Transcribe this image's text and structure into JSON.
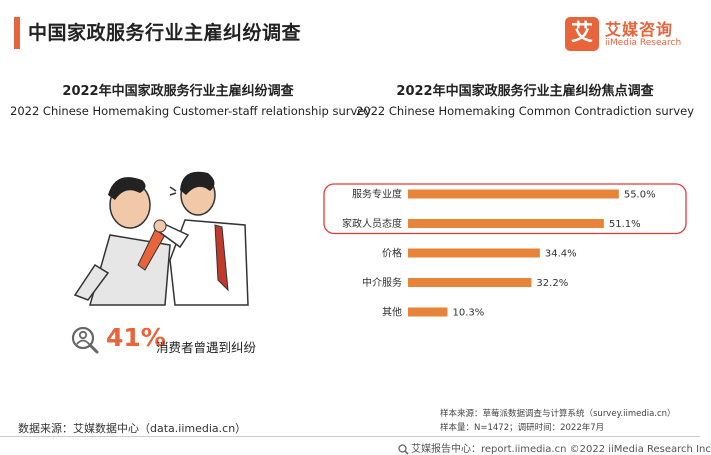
{
  "header": {
    "title": "中国家政服务行业主雇纠纷调查",
    "accent_color": "#e8643a"
  },
  "logo": {
    "icon_text": "艾",
    "name_cn": "艾媒咨询",
    "name_en": "iiMedia Research"
  },
  "left_panel": {
    "title_cn": "2022年中国家政服务行业主雇纠纷调查",
    "title_en": "2022 Chinese Homemaking Customer-staff relationship survey",
    "illustration": "two-men-arguing-illustration",
    "stat_icon": "person-magnifier-icon",
    "stat_value": "41%",
    "stat_label": "消费者曾遇到纠纷"
  },
  "right_panel": {
    "title_cn": "2022年中国家政服务行业主雇纠纷焦点调查",
    "title_en": "2022 Chinese Homemaking Common Contradiction survey"
  },
  "chart_data": {
    "type": "bar",
    "orientation": "horizontal",
    "title": "2022年中国家政服务行业主雇纠纷焦点调查",
    "categories": [
      "服务专业度",
      "家政人员态度",
      "价格",
      "中介服务",
      "其他"
    ],
    "values": [
      55.0,
      51.1,
      34.4,
      32.2,
      10.3
    ],
    "value_labels": [
      "55.0%",
      "51.1%",
      "34.4%",
      "32.2%",
      "10.3%"
    ],
    "unit": "%",
    "bar_color": "#e8833a",
    "highlight_color": "#e53935",
    "highlighted_categories": [
      "服务专业度",
      "家政人员态度"
    ],
    "grid": false,
    "legend": "none"
  },
  "sources": {
    "left": "数据来源：艾媒数据中心（data.iimedia.cn）",
    "right_line1": "样本来源：草莓派数据调查与计算系统（survey.iimedia.cn）",
    "right_line2": "样本量：N=1472；调研时间：2022年7月"
  },
  "footer": {
    "text": "艾媒报告中心：report.iimedia.cn  ©2022  iiMedia Research  Inc"
  }
}
